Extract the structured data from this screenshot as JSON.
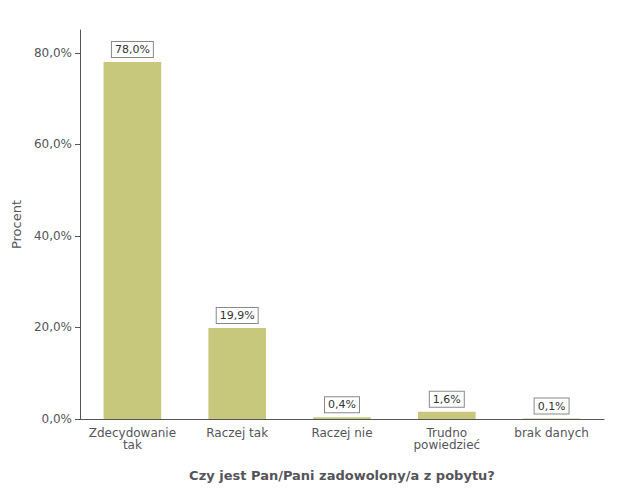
{
  "chart_data": {
    "type": "bar",
    "categories": [
      "Zdecydowanie\ntak",
      "Raczej tak",
      "Raczej nie",
      "Trudno\npowiedzieć",
      "brak danych"
    ],
    "values": [
      78.0,
      19.9,
      0.4,
      1.6,
      0.1
    ],
    "value_labels": [
      "78,0%",
      "19,9%",
      "0,4%",
      "1,6%",
      "0,1%"
    ],
    "data_labels": true,
    "color": "#c8c87d",
    "xlabel": "Czy jest Pan/Pani zadowolony/a z pobytu?",
    "ylabel": "Procent",
    "ylim": [
      0,
      85
    ],
    "yticks": [
      {
        "value": 0,
        "label": "0,0%"
      },
      {
        "value": 20,
        "label": "20,0%"
      },
      {
        "value": 40,
        "label": "40,0%"
      },
      {
        "value": 60,
        "label": "60,0%"
      },
      {
        "value": 80,
        "label": "80,0%"
      }
    ],
    "grid": false
  }
}
